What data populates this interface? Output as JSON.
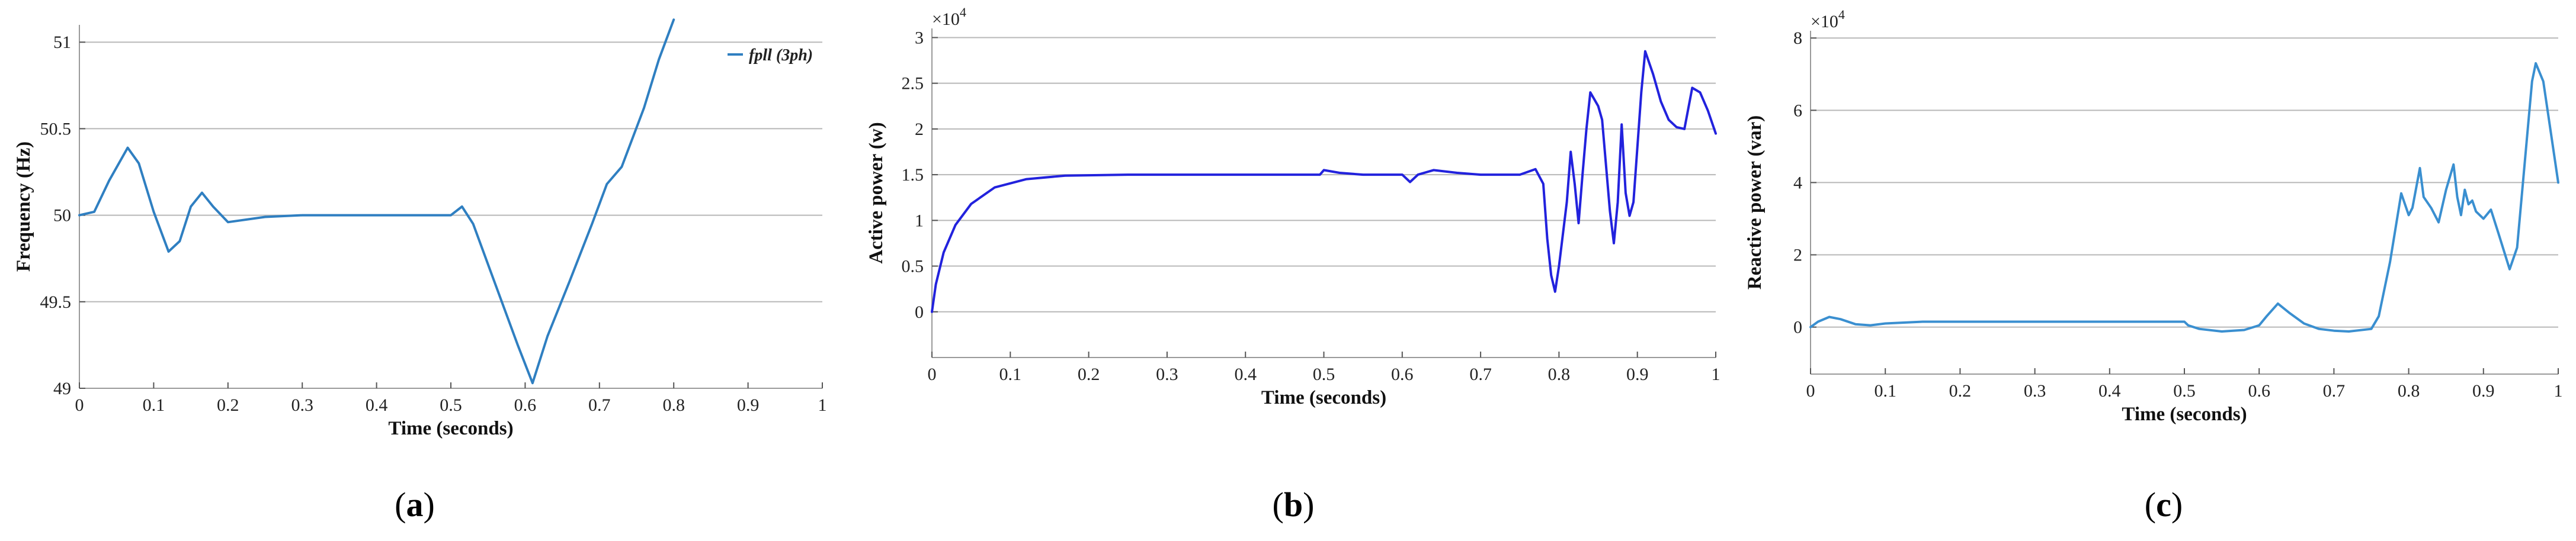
{
  "figure": {
    "panels": [
      {
        "id": "a",
        "label_prefix": "(",
        "label_letter": "a",
        "label_suffix": ")"
      },
      {
        "id": "b",
        "label_prefix": "(",
        "label_letter": "b",
        "label_suffix": ")"
      },
      {
        "id": "c",
        "label_prefix": "(",
        "label_letter": "c",
        "label_suffix": ")"
      }
    ]
  },
  "chart_data": [
    {
      "type": "line",
      "xlabel": "Time (seconds)",
      "ylabel": "Frequency (Hz)",
      "xlim": [
        0,
        1
      ],
      "ylim": [
        49,
        51.1
      ],
      "xticks": [
        0,
        0.1,
        0.2,
        0.3,
        0.4,
        0.5,
        0.6,
        0.7,
        0.8,
        0.9,
        1
      ],
      "xtick_labels": [
        "0",
        "0.1",
        "0.2",
        "0.3",
        "0.4",
        "0.5",
        "0.6",
        "0.7",
        "0.8",
        "0.9",
        "1"
      ],
      "yticks": [
        49,
        49.5,
        50,
        50.5,
        51
      ],
      "ytick_labels": [
        "49",
        "49.5",
        "50",
        "50.5",
        "51"
      ],
      "grid": "horizontal",
      "legend_position": "top-right",
      "series": [
        {
          "name": "fpll (3ph)",
          "color": "#2f7fc1",
          "points": [
            [
              0,
              50.0
            ],
            [
              0.02,
              50.02
            ],
            [
              0.04,
              50.2
            ],
            [
              0.065,
              50.39
            ],
            [
              0.08,
              50.3
            ],
            [
              0.1,
              50.02
            ],
            [
              0.12,
              49.79
            ],
            [
              0.135,
              49.85
            ],
            [
              0.15,
              50.05
            ],
            [
              0.165,
              50.13
            ],
            [
              0.18,
              50.05
            ],
            [
              0.2,
              49.96
            ],
            [
              0.25,
              49.99
            ],
            [
              0.3,
              50.0
            ],
            [
              0.4,
              50.0
            ],
            [
              0.5,
              50.0
            ],
            [
              0.515,
              50.05
            ],
            [
              0.53,
              49.95
            ],
            [
              0.56,
              49.6
            ],
            [
              0.59,
              49.25
            ],
            [
              0.61,
              49.03
            ],
            [
              0.63,
              49.3
            ],
            [
              0.66,
              49.62
            ],
            [
              0.69,
              49.95
            ],
            [
              0.71,
              50.18
            ],
            [
              0.73,
              50.28
            ],
            [
              0.76,
              50.62
            ],
            [
              0.78,
              50.9
            ],
            [
              0.8,
              51.13
            ]
          ]
        }
      ]
    },
    {
      "type": "line",
      "xlabel": "Time (seconds)",
      "ylabel": "Active power (w)",
      "multiplier": "×10",
      "multiplier_exp": "4",
      "xlim": [
        0,
        1
      ],
      "ylim": [
        -0.5,
        3.1
      ],
      "xticks": [
        0,
        0.1,
        0.2,
        0.3,
        0.4,
        0.5,
        0.6,
        0.7,
        0.8,
        0.9,
        1
      ],
      "xtick_labels": [
        "0",
        "0.1",
        "0.2",
        "0.3",
        "0.4",
        "0.5",
        "0.6",
        "0.7",
        "0.8",
        "0.9",
        "1"
      ],
      "yticks": [
        0,
        0.5,
        1,
        1.5,
        2,
        2.5,
        3
      ],
      "ytick_labels": [
        "0",
        "0.5",
        "1",
        "1.5",
        "2",
        "2.5",
        "3"
      ],
      "grid": "horizontal",
      "series": [
        {
          "color": "#2222dd",
          "points": [
            [
              0,
              0.0
            ],
            [
              0.005,
              0.3
            ],
            [
              0.015,
              0.65
            ],
            [
              0.03,
              0.95
            ],
            [
              0.05,
              1.18
            ],
            [
              0.08,
              1.36
            ],
            [
              0.12,
              1.45
            ],
            [
              0.17,
              1.49
            ],
            [
              0.25,
              1.5
            ],
            [
              0.4,
              1.5
            ],
            [
              0.495,
              1.5
            ],
            [
              0.5,
              1.55
            ],
            [
              0.52,
              1.52
            ],
            [
              0.55,
              1.5
            ],
            [
              0.6,
              1.5
            ],
            [
              0.61,
              1.42
            ],
            [
              0.62,
              1.5
            ],
            [
              0.64,
              1.55
            ],
            [
              0.67,
              1.52
            ],
            [
              0.7,
              1.5
            ],
            [
              0.75,
              1.5
            ],
            [
              0.77,
              1.56
            ],
            [
              0.78,
              1.4
            ],
            [
              0.785,
              0.8
            ],
            [
              0.79,
              0.4
            ],
            [
              0.795,
              0.22
            ],
            [
              0.8,
              0.5
            ],
            [
              0.81,
              1.2
            ],
            [
              0.815,
              1.75
            ],
            [
              0.82,
              1.4
            ],
            [
              0.825,
              0.97
            ],
            [
              0.83,
              1.5
            ],
            [
              0.835,
              2.0
            ],
            [
              0.84,
              2.4
            ],
            [
              0.85,
              2.25
            ],
            [
              0.855,
              2.1
            ],
            [
              0.86,
              1.6
            ],
            [
              0.865,
              1.1
            ],
            [
              0.87,
              0.75
            ],
            [
              0.875,
              1.2
            ],
            [
              0.88,
              2.05
            ],
            [
              0.885,
              1.3
            ],
            [
              0.89,
              1.05
            ],
            [
              0.895,
              1.2
            ],
            [
              0.9,
              1.8
            ],
            [
              0.905,
              2.4
            ],
            [
              0.91,
              2.85
            ],
            [
              0.92,
              2.6
            ],
            [
              0.93,
              2.3
            ],
            [
              0.94,
              2.1
            ],
            [
              0.95,
              2.02
            ],
            [
              0.96,
              2.0
            ],
            [
              0.97,
              2.45
            ],
            [
              0.98,
              2.4
            ],
            [
              0.99,
              2.2
            ],
            [
              1.0,
              1.95
            ]
          ]
        }
      ]
    },
    {
      "type": "line",
      "xlabel": "Time (seconds)",
      "ylabel": "Reactive power (var)",
      "multiplier": "×10",
      "multiplier_exp": "4",
      "xlim": [
        0,
        1
      ],
      "ylim": [
        -1.3,
        8.2
      ],
      "xticks": [
        0,
        0.1,
        0.2,
        0.3,
        0.4,
        0.5,
        0.6,
        0.7,
        0.8,
        0.9,
        1
      ],
      "xtick_labels": [
        "0",
        "0.1",
        "0.2",
        "0.3",
        "0.4",
        "0.5",
        "0.6",
        "0.7",
        "0.8",
        "0.9",
        "1"
      ],
      "yticks": [
        0,
        2,
        4,
        6,
        8
      ],
      "ytick_labels": [
        "0",
        "2",
        "4",
        "6",
        "8"
      ],
      "grid": "horizontal",
      "series": [
        {
          "color": "#3a8fd0",
          "points": [
            [
              0,
              0.0
            ],
            [
              0.01,
              0.15
            ],
            [
              0.025,
              0.28
            ],
            [
              0.04,
              0.22
            ],
            [
              0.06,
              0.08
            ],
            [
              0.08,
              0.05
            ],
            [
              0.1,
              0.1
            ],
            [
              0.15,
              0.15
            ],
            [
              0.3,
              0.15
            ],
            [
              0.45,
              0.15
            ],
            [
              0.5,
              0.15
            ],
            [
              0.505,
              0.05
            ],
            [
              0.52,
              -0.05
            ],
            [
              0.55,
              -0.12
            ],
            [
              0.58,
              -0.08
            ],
            [
              0.6,
              0.05
            ],
            [
              0.61,
              0.3
            ],
            [
              0.625,
              0.65
            ],
            [
              0.64,
              0.4
            ],
            [
              0.66,
              0.1
            ],
            [
              0.68,
              -0.05
            ],
            [
              0.7,
              -0.1
            ],
            [
              0.72,
              -0.12
            ],
            [
              0.75,
              -0.05
            ],
            [
              0.76,
              0.3
            ],
            [
              0.775,
              1.8
            ],
            [
              0.79,
              3.7
            ],
            [
              0.8,
              3.1
            ],
            [
              0.805,
              3.3
            ],
            [
              0.815,
              4.4
            ],
            [
              0.82,
              3.6
            ],
            [
              0.83,
              3.3
            ],
            [
              0.84,
              2.9
            ],
            [
              0.85,
              3.8
            ],
            [
              0.86,
              4.5
            ],
            [
              0.865,
              3.6
            ],
            [
              0.87,
              3.1
            ],
            [
              0.875,
              3.8
            ],
            [
              0.88,
              3.4
            ],
            [
              0.885,
              3.5
            ],
            [
              0.89,
              3.2
            ],
            [
              0.9,
              3.0
            ],
            [
              0.91,
              3.25
            ],
            [
              0.92,
              2.6
            ],
            [
              0.935,
              1.6
            ],
            [
              0.945,
              2.2
            ],
            [
              0.955,
              4.5
            ],
            [
              0.965,
              6.8
            ],
            [
              0.97,
              7.3
            ],
            [
              0.98,
              6.8
            ],
            [
              0.99,
              5.4
            ],
            [
              1.0,
              4.0
            ]
          ]
        }
      ]
    }
  ]
}
